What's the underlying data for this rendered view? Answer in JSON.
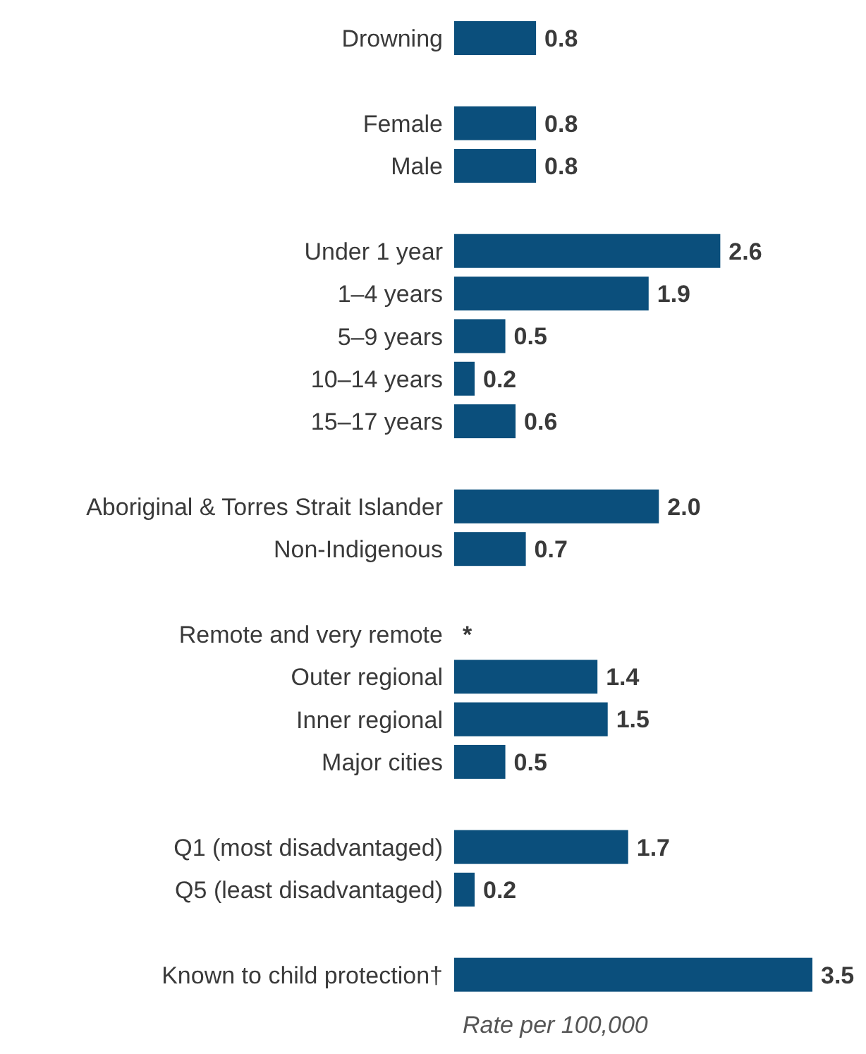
{
  "chart_data": {
    "type": "bar",
    "orientation": "horizontal",
    "xlabel": "Rate per 100,000",
    "color": "#0b4f7c",
    "categories": [
      "Drowning",
      null,
      "Female",
      "Male",
      null,
      "Under 1 year",
      "1–4 years",
      "5–9 years",
      "10–14 years",
      "15–17 years",
      null,
      "Aboriginal & Torres Strait Islander",
      "Non-Indigenous",
      null,
      "Remote and very remote",
      "Outer regional",
      "Inner regional",
      "Major cities",
      null,
      "Q1 (most disadvantaged)",
      "Q5 (least disadvantaged)",
      null,
      "Known to child protection†"
    ],
    "values": [
      0.8,
      null,
      0.8,
      0.8,
      null,
      2.6,
      1.9,
      0.5,
      0.2,
      0.6,
      null,
      2.0,
      0.7,
      null,
      null,
      1.4,
      1.5,
      0.5,
      null,
      1.7,
      0.2,
      null,
      3.5
    ],
    "value_labels": [
      "0.8",
      null,
      "0.8",
      "0.8",
      null,
      "2.6",
      "1.9",
      "0.5",
      "0.2",
      "0.6",
      null,
      "2.0",
      "0.7",
      null,
      "*",
      "1.4",
      "1.5",
      "0.5",
      null,
      "1.7",
      "0.2",
      null,
      "3.5"
    ]
  }
}
